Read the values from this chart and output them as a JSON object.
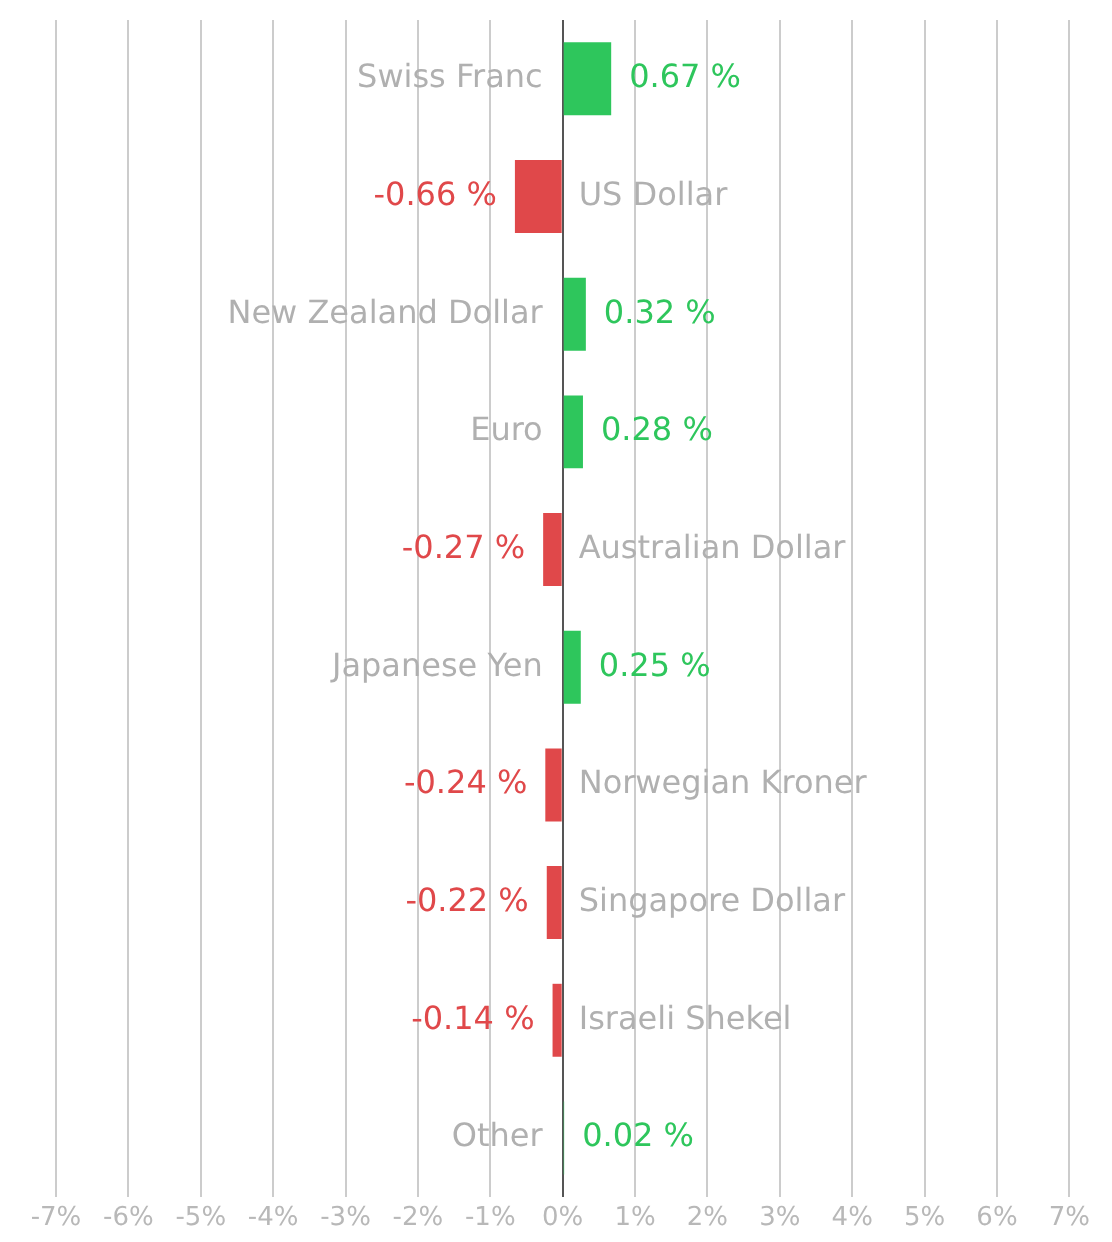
{
  "chart_data": {
    "type": "bar",
    "orientation": "horizontal",
    "categories": [
      "Swiss Franc",
      "US Dollar",
      "New Zealand Dollar",
      "Euro",
      "Australian Dollar",
      "Japanese Yen",
      "Norwegian Kroner",
      "Singapore Dollar",
      "Israeli Shekel",
      "Other"
    ],
    "values": [
      0.67,
      -0.66,
      0.32,
      0.28,
      -0.27,
      0.25,
      -0.24,
      -0.22,
      -0.14,
      0.02
    ],
    "colors": [
      "#2ec65c",
      "#e0484a",
      "#2ec65c",
      "#2ec65c",
      "#e0484a",
      "#2ec65c",
      "#e0484a",
      "#e0484a",
      "#e0484a",
      "#2ec65c"
    ],
    "value_labels": [
      "0.67 %",
      "-0.66 %",
      "0.32 %",
      "0.28 %",
      "-0.27 %",
      "0.25 %",
      "-0.24 %",
      "-0.22 %",
      "-0.14 %",
      "0.02 %"
    ],
    "xlim": [
      -7,
      7
    ],
    "xticks": [
      {
        "value": -7,
        "label": "-7%"
      },
      {
        "value": -6,
        "label": "-6%"
      },
      {
        "value": -5,
        "label": "-5%"
      },
      {
        "value": -4,
        "label": "-4%"
      },
      {
        "value": -3,
        "label": "-3%"
      },
      {
        "value": -2,
        "label": "-2%"
      },
      {
        "value": -1,
        "label": "-1%"
      },
      {
        "value": 0,
        "label": "0%"
      },
      {
        "value": 1,
        "label": "1%"
      },
      {
        "value": 2,
        "label": "2%"
      },
      {
        "value": 3,
        "label": "3%"
      },
      {
        "value": 4,
        "label": "4%"
      },
      {
        "value": 5,
        "label": "5%"
      },
      {
        "value": 6,
        "label": "6%"
      },
      {
        "value": 7,
        "label": "7%"
      }
    ],
    "grid": "x",
    "legend": false
  }
}
